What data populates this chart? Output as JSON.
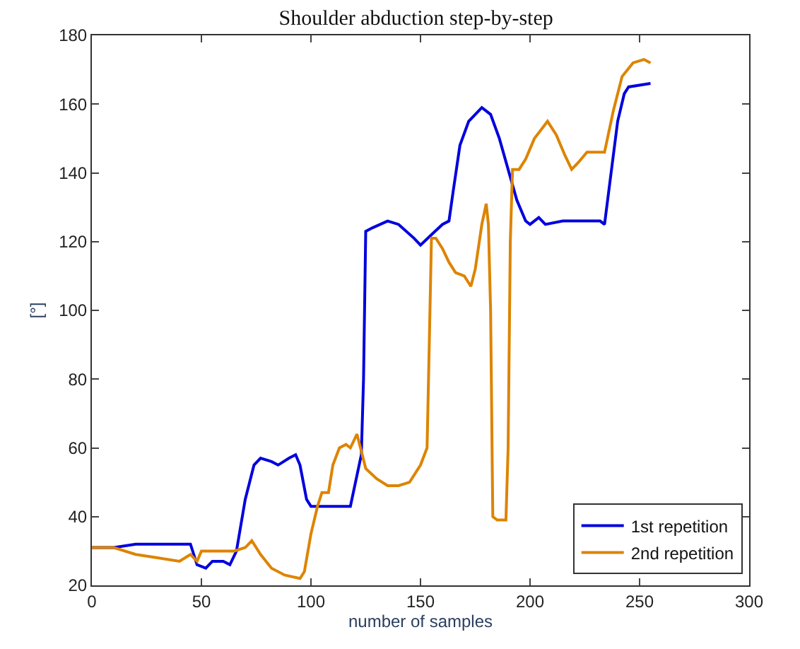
{
  "chart_data": {
    "type": "line",
    "title": "Shoulder abduction step-by-step",
    "xlabel": "number of samples",
    "ylabel": "[°]",
    "xlim": [
      0,
      300
    ],
    "xticks": [
      0,
      50,
      100,
      150,
      200,
      250,
      300
    ],
    "ylim": [
      20,
      180
    ],
    "yticks": [
      20,
      40,
      60,
      80,
      100,
      120,
      140,
      160,
      180
    ],
    "legend": "bottom right",
    "marker": "none",
    "line_style": "solid",
    "series": [
      {
        "name": "1st repetition",
        "color": "#0000dd",
        "x": [
          0,
          10,
          20,
          45,
          48,
          52,
          55,
          60,
          63,
          66,
          70,
          74,
          77,
          82,
          85,
          90,
          93,
          95,
          98,
          100,
          110,
          118,
          121,
          123,
          124,
          125,
          128,
          135,
          140,
          147,
          150,
          155,
          160,
          163,
          165,
          168,
          172,
          178,
          182,
          186,
          190,
          194,
          198,
          200,
          204,
          207,
          215,
          225,
          232,
          234,
          236,
          240,
          243,
          245,
          255
        ],
        "values": [
          31,
          31,
          32,
          32,
          26,
          25,
          27,
          27,
          26,
          30,
          45,
          55,
          57,
          56,
          55,
          57,
          58,
          55,
          45,
          43,
          43,
          43,
          52,
          58,
          80,
          123,
          124,
          126,
          125,
          121,
          119,
          122,
          125,
          126,
          135,
          148,
          155,
          159,
          157,
          150,
          141,
          132,
          126,
          125,
          127,
          125,
          126,
          126,
          126,
          125,
          135,
          155,
          163,
          165,
          166
        ]
      },
      {
        "name": "2nd repetition",
        "color": "#dd8400",
        "x": [
          0,
          10,
          20,
          30,
          40,
          45,
          48,
          50,
          65,
          70,
          73,
          77,
          82,
          88,
          95,
          97,
          100,
          103,
          105,
          108,
          110,
          113,
          116,
          118,
          121,
          123,
          125,
          130,
          135,
          140,
          145,
          150,
          153,
          154,
          155,
          157,
          160,
          163,
          166,
          170,
          173,
          175,
          178,
          180,
          181,
          182,
          183,
          185,
          189,
          190,
          191,
          192,
          195,
          198,
          202,
          208,
          212,
          216,
          219,
          222,
          226,
          234,
          238,
          242,
          247,
          252,
          255
        ],
        "values": [
          31,
          31,
          29,
          28,
          27,
          29,
          27,
          30,
          30,
          31,
          33,
          29,
          25,
          23,
          22,
          24,
          35,
          43,
          47,
          47,
          55,
          60,
          61,
          60,
          64,
          59,
          54,
          51,
          49,
          49,
          50,
          55,
          60,
          90,
          121,
          121,
          118,
          114,
          111,
          110,
          107,
          112,
          125,
          131,
          125,
          100,
          40,
          39,
          39,
          60,
          120,
          141,
          141,
          144,
          150,
          155,
          151,
          145,
          141,
          143,
          146,
          146,
          158,
          168,
          172,
          173,
          172
        ]
      }
    ]
  }
}
